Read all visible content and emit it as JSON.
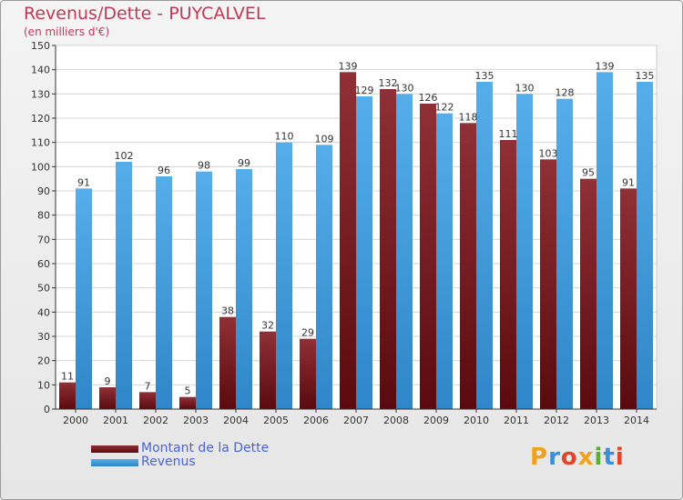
{
  "header": {
    "title": "Revenus/Dette - PUYCALVEL",
    "subtitle": "(en milliers d'€)"
  },
  "colors": {
    "dette": "#7a1f24",
    "revenus": "#4aa4e6"
  },
  "legend": {
    "dette_label": "Montant de la Dette",
    "revenus_label": "Revenus"
  },
  "logo": {
    "text": "Proxiti"
  },
  "chart_data": {
    "type": "bar",
    "title": "Revenus/Dette - PUYCALVEL",
    "subtitle": "(en milliers d'€)",
    "xlabel": "",
    "ylabel": "",
    "ylim": [
      0,
      150
    ],
    "yticks": [
      0,
      10,
      20,
      30,
      40,
      50,
      60,
      70,
      80,
      90,
      100,
      110,
      120,
      130,
      140,
      150
    ],
    "grid": true,
    "legend_position": "bottom-left",
    "categories": [
      "2000",
      "2001",
      "2002",
      "2003",
      "2004",
      "2005",
      "2006",
      "2007",
      "2008",
      "2009",
      "2010",
      "2011",
      "2012",
      "2013",
      "2014"
    ],
    "series": [
      {
        "name": "Montant de la Dette",
        "values": [
          11,
          9,
          7,
          5,
          38,
          32,
          29,
          139,
          132,
          126,
          118,
          111,
          103,
          95,
          91
        ]
      },
      {
        "name": "Revenus",
        "values": [
          91,
          102,
          96,
          98,
          99,
          110,
          109,
          129,
          130,
          122,
          135,
          130,
          128,
          139,
          135
        ]
      }
    ]
  }
}
